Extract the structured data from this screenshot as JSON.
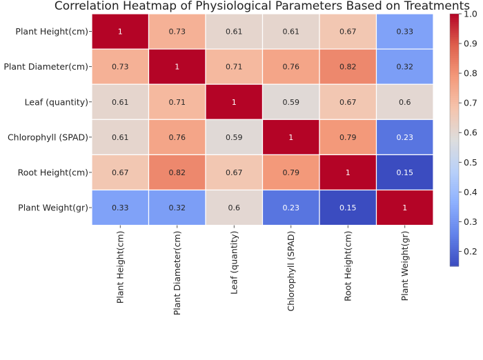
{
  "chart_data": {
    "type": "heatmap",
    "title": "Correlation Heatmap of Physiological Parameters Based on Treatments",
    "row_labels": [
      "Plant Height(cm)",
      "Plant Diameter(cm)",
      "Leaf (quantity)",
      "Chlorophyll (SPAD)",
      "Root Height(cm)",
      "Plant Weight(gr)"
    ],
    "col_labels": [
      "Plant Height(cm)",
      "Plant Diameter(cm)",
      "Leaf (quantity)",
      "Chlorophyll (SPAD)",
      "Root Height(cm)",
      "Plant Weight(gr)"
    ],
    "values": [
      [
        1,
        0.73,
        0.61,
        0.61,
        0.67,
        0.33
      ],
      [
        0.73,
        1,
        0.71,
        0.76,
        0.82,
        0.32
      ],
      [
        0.61,
        0.71,
        1,
        0.59,
        0.67,
        0.6
      ],
      [
        0.61,
        0.76,
        0.59,
        1,
        0.79,
        0.23
      ],
      [
        0.67,
        0.82,
        0.67,
        0.79,
        1,
        0.15
      ],
      [
        0.33,
        0.32,
        0.6,
        0.23,
        0.15,
        1
      ]
    ],
    "colormap": "coolwarm",
    "colorbar": {
      "min": 0.15,
      "max": 1,
      "ticks": [
        0.2,
        0.3,
        0.4,
        0.5,
        0.6,
        0.7,
        0.8,
        0.9,
        1.0
      ],
      "tick_labels": [
        "0.2",
        "0.3",
        "0.4",
        "0.5",
        "0.6",
        "0.7",
        "0.8",
        "0.9",
        "1.0"
      ]
    },
    "xlabel": "",
    "ylabel": ""
  }
}
